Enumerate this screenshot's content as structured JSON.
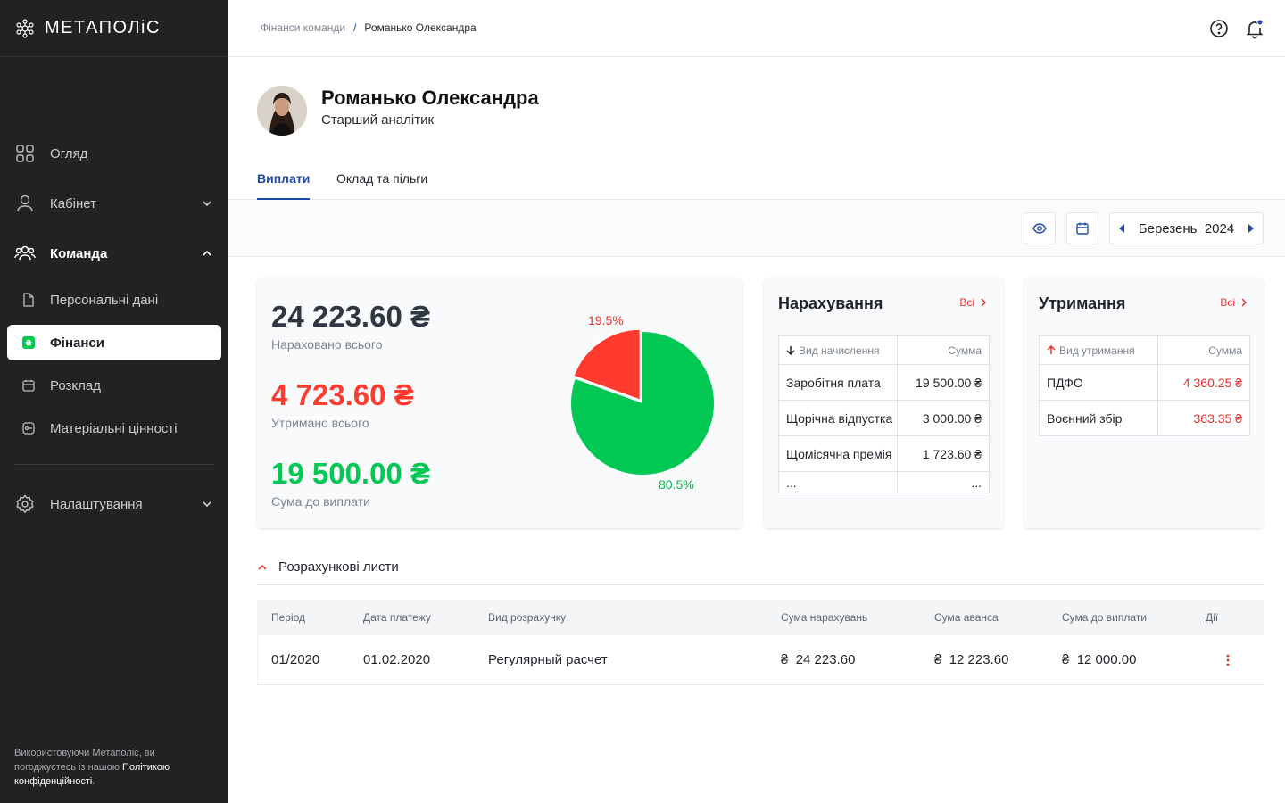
{
  "app": {
    "logo_text": "МЕТАПОЛіС"
  },
  "sidebar": {
    "items": [
      {
        "label": "Огляд",
        "icon": "grid-icon"
      },
      {
        "label": "Кабінет",
        "icon": "user-icon"
      },
      {
        "label": "Команда",
        "icon": "team-icon"
      },
      {
        "label": "Налаштування",
        "icon": "gear-icon"
      }
    ],
    "sub_items": [
      {
        "label": "Персональні дані",
        "icon": "document-icon"
      },
      {
        "label": "Фінанси",
        "icon": "hryvnia-icon",
        "active": true
      },
      {
        "label": "Розклад",
        "icon": "calendar-icon"
      },
      {
        "label": "Матеріальні цінності",
        "icon": "asset-icon"
      }
    ],
    "footer": {
      "text": "Використовуючи Метаполіс, ви погоджуєтесь із нашою",
      "link": "Політикою конфіденційності",
      "end": "."
    }
  },
  "breadcrumb": {
    "parent": "Фінанси команди",
    "separator": "/",
    "current": "Романько Олександра"
  },
  "profile": {
    "name": "Романько Олександра",
    "role": "Старший аналітик"
  },
  "tabs": [
    {
      "label": "Виплати",
      "active": true
    },
    {
      "label": "Оклад та пільги",
      "active": false
    }
  ],
  "toolbar": {
    "month": "Березень",
    "year": "2024"
  },
  "summary": {
    "accrued": "24 223.60 ₴",
    "accrued_label": "Нараховано всього",
    "withheld": "4 723.60 ₴",
    "withheld_label": "Утримано всього",
    "payout": "19 500.00 ₴",
    "payout_label": "Сума до виплати"
  },
  "chart_data": {
    "type": "pie",
    "slices": [
      {
        "label": "19.5%",
        "value": 19.5,
        "color": "#ff3b30"
      },
      {
        "label": "80.5%",
        "value": 80.5,
        "color": "#00c853"
      }
    ]
  },
  "accruals": {
    "title": "Нарахування",
    "link": "Всі",
    "col_type": "Вид начислення",
    "col_sum": "Сумма",
    "rows": [
      {
        "name": "Заробітня плата",
        "sum": "19 500.00 ₴"
      },
      {
        "name": "Щорічна відпустка",
        "sum": "3 000.00 ₴"
      },
      {
        "name": "Щомісячна премія",
        "sum": "1 723.60 ₴"
      },
      {
        "name": "...",
        "sum": "..."
      }
    ]
  },
  "deductions": {
    "title": "Утримання",
    "link": "Всі",
    "col_type": "Вид утримання",
    "col_sum": "Сумма",
    "rows": [
      {
        "name": "ПДФО",
        "sum": "4 360.25 ₴"
      },
      {
        "name": "Воєнний збір",
        "sum": "363.35 ₴"
      }
    ]
  },
  "payslips": {
    "title": "Розрахункові листи",
    "columns": [
      "Період",
      "Дата платежу",
      "Вид розрахунку",
      "Сума нарахувань",
      "Сума аванса",
      "Сума до виплати",
      "Дії"
    ],
    "currency": "₴",
    "rows": [
      {
        "period": "01/2020",
        "date": "01.02.2020",
        "type": "Регулярный расчет",
        "accrued": "24 223.60",
        "advance": "12 223.60",
        "payout": "12 000.00"
      }
    ]
  },
  "colors": {
    "accent": "#1f4aa8",
    "danger": "#e5322d",
    "success": "#00c853",
    "sidebar": "#222222"
  }
}
